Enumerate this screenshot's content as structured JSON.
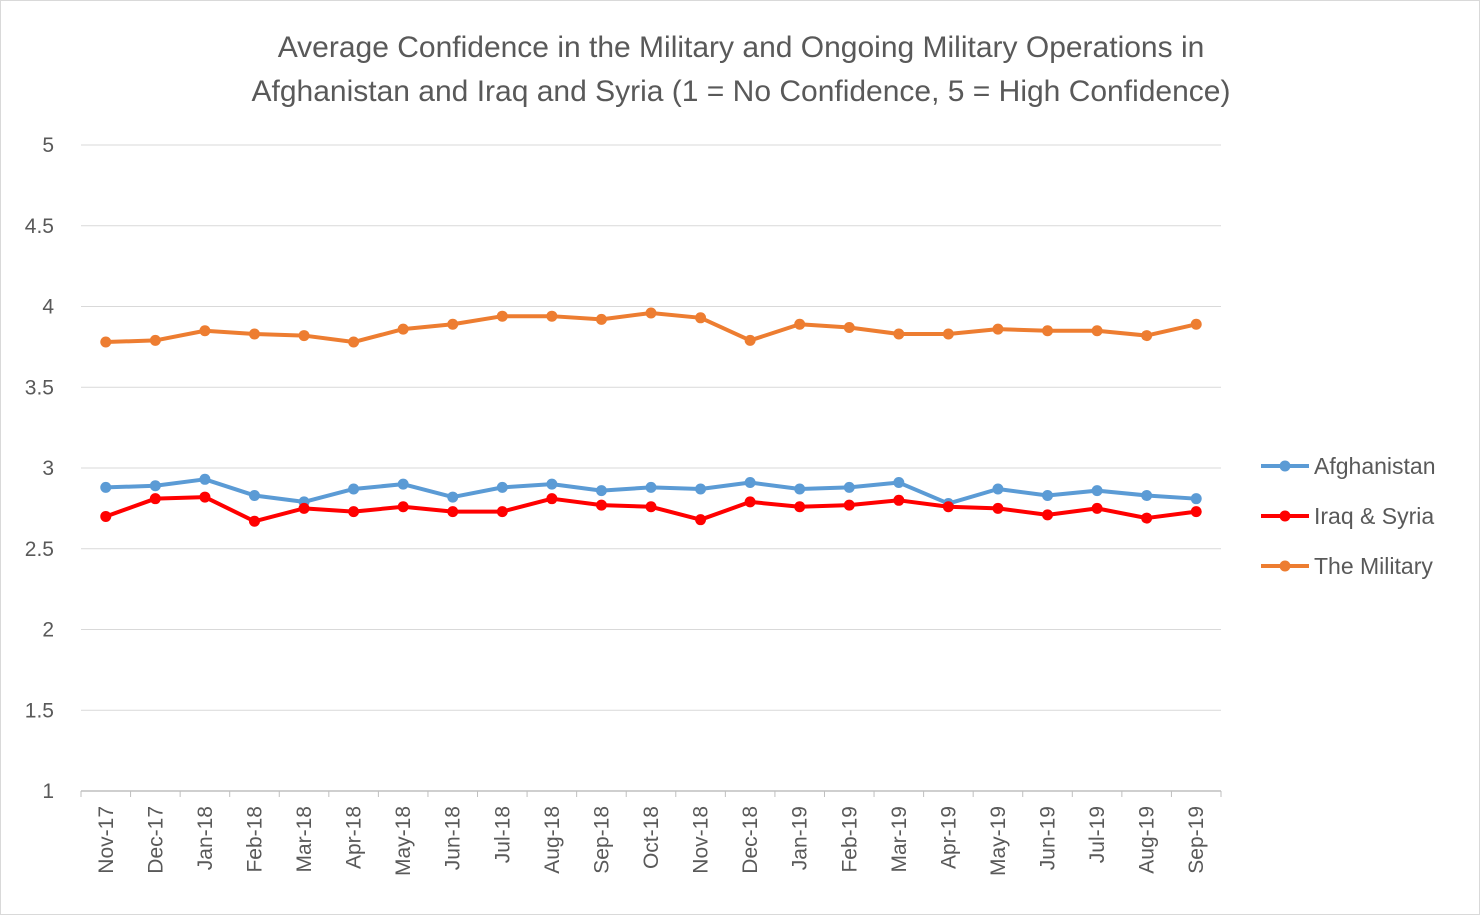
{
  "chart_data": {
    "type": "line",
    "title_lines": [
      "Average Confidence in the Military and Ongoing Military Operations in",
      "Afghanistan and Iraq and Syria (1 = No Confidence, 5 = High Confidence)"
    ],
    "xlabel": "",
    "ylabel": "",
    "ylim": [
      1,
      5
    ],
    "yticks": [
      1,
      1.5,
      2,
      2.5,
      3,
      3.5,
      4,
      4.5,
      5
    ],
    "ytick_labels": [
      "1",
      "1.5",
      "2",
      "2.5",
      "3",
      "3.5",
      "4",
      "4.5",
      "5"
    ],
    "grid": true,
    "legend_position": "right",
    "categories": [
      "Nov-17",
      "Dec-17",
      "Jan-18",
      "Feb-18",
      "Mar-18",
      "Apr-18",
      "May-18",
      "Jun-18",
      "Jul-18",
      "Aug-18",
      "Sep-18",
      "Oct-18",
      "Nov-18",
      "Dec-18",
      "Jan-19",
      "Feb-19",
      "Mar-19",
      "Apr-19",
      "May-19",
      "Jun-19",
      "Jul-19",
      "Aug-19",
      "Sep-19"
    ],
    "series": [
      {
        "name": "Afghanistan",
        "color": "#5b9bd5",
        "values": [
          2.88,
          2.89,
          2.93,
          2.83,
          2.79,
          2.87,
          2.9,
          2.82,
          2.88,
          2.9,
          2.86,
          2.88,
          2.87,
          2.91,
          2.87,
          2.88,
          2.91,
          2.78,
          2.87,
          2.83,
          2.86,
          2.83,
          2.81
        ]
      },
      {
        "name": "Iraq & Syria",
        "color": "#ff0000",
        "values": [
          2.7,
          2.81,
          2.82,
          2.67,
          2.75,
          2.73,
          2.76,
          2.73,
          2.73,
          2.81,
          2.77,
          2.76,
          2.68,
          2.79,
          2.76,
          2.77,
          2.8,
          2.76,
          2.75,
          2.71,
          2.75,
          2.69,
          2.73
        ]
      },
      {
        "name": "The Military",
        "color": "#ed7d31",
        "values": [
          3.78,
          3.79,
          3.85,
          3.83,
          3.82,
          3.78,
          3.86,
          3.89,
          3.94,
          3.94,
          3.92,
          3.96,
          3.93,
          3.79,
          3.89,
          3.87,
          3.83,
          3.83,
          3.86,
          3.85,
          3.85,
          3.82,
          3.89
        ]
      }
    ]
  }
}
